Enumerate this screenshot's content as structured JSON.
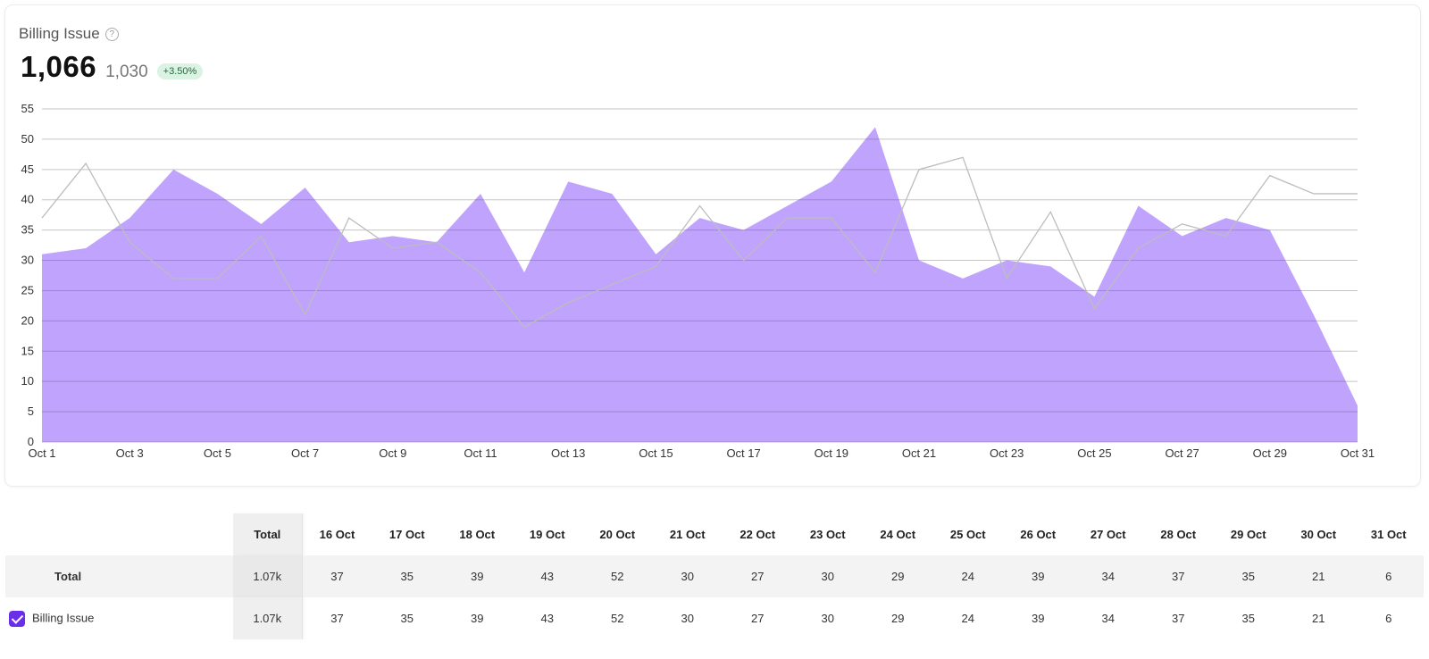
{
  "header": {
    "title": "Billing Issue",
    "help_icon": "?",
    "total_value": "1,066",
    "previous_value": "1,030",
    "change_badge": "+3.50%"
  },
  "colors": {
    "current_fill": "#bfa3fc",
    "previous_line": "#bdbdbd",
    "checkbox": "#6b2ee8"
  },
  "chart_data": {
    "type": "area",
    "x": [
      "Oct 1",
      "Oct 2",
      "Oct 3",
      "Oct 4",
      "Oct 5",
      "Oct 6",
      "Oct 7",
      "Oct 8",
      "Oct 9",
      "Oct 10",
      "Oct 11",
      "Oct 12",
      "Oct 13",
      "Oct 14",
      "Oct 15",
      "Oct 16",
      "Oct 17",
      "Oct 18",
      "Oct 19",
      "Oct 20",
      "Oct 21",
      "Oct 22",
      "Oct 23",
      "Oct 24",
      "Oct 25",
      "Oct 26",
      "Oct 27",
      "Oct 28",
      "Oct 29",
      "Oct 30",
      "Oct 31"
    ],
    "x_tick_labels": [
      "Oct 1",
      "Oct 3",
      "Oct 5",
      "Oct 7",
      "Oct 9",
      "Oct 11",
      "Oct 13",
      "Oct 15",
      "Oct 17",
      "Oct 19",
      "Oct 21",
      "Oct 23",
      "Oct 25",
      "Oct 27",
      "Oct 29",
      "Oct 31"
    ],
    "y_ticks": [
      0,
      5,
      10,
      15,
      20,
      25,
      30,
      35,
      40,
      45,
      50,
      55
    ],
    "ylim": [
      0,
      55
    ],
    "grid": true,
    "series": [
      {
        "name": "Billing Issue",
        "style": "area",
        "values": [
          31,
          32,
          37,
          45,
          41,
          36,
          42,
          33,
          34,
          33,
          41,
          28,
          43,
          41,
          31,
          37,
          35,
          39,
          43,
          52,
          30,
          27,
          30,
          29,
          24,
          39,
          34,
          37,
          35,
          21,
          6
        ]
      },
      {
        "style": "line",
        "values": [
          37,
          46,
          33,
          27,
          27,
          34,
          21,
          37,
          32,
          33,
          28,
          19,
          23,
          26,
          29,
          39,
          30,
          37,
          37,
          28,
          45,
          47,
          27,
          38,
          22,
          32,
          36,
          34,
          44,
          41,
          41
        ]
      }
    ]
  },
  "table": {
    "total_header": "Total",
    "columns": [
      "16 Oct",
      "17 Oct",
      "18 Oct",
      "19 Oct",
      "20 Oct",
      "21 Oct",
      "22 Oct",
      "23 Oct",
      "24 Oct",
      "25 Oct",
      "26 Oct",
      "27 Oct",
      "28 Oct",
      "29 Oct",
      "30 Oct",
      "31 Oct"
    ],
    "rows": [
      {
        "label": "Total",
        "total": "1.07k",
        "values": [
          "37",
          "35",
          "39",
          "43",
          "52",
          "30",
          "27",
          "30",
          "29",
          "24",
          "39",
          "34",
          "37",
          "35",
          "21",
          "6"
        ]
      },
      {
        "label": "Billing Issue",
        "checked": true,
        "total": "1.07k",
        "values": [
          "37",
          "35",
          "39",
          "43",
          "52",
          "30",
          "27",
          "30",
          "29",
          "24",
          "39",
          "34",
          "37",
          "35",
          "21",
          "6"
        ]
      }
    ]
  }
}
